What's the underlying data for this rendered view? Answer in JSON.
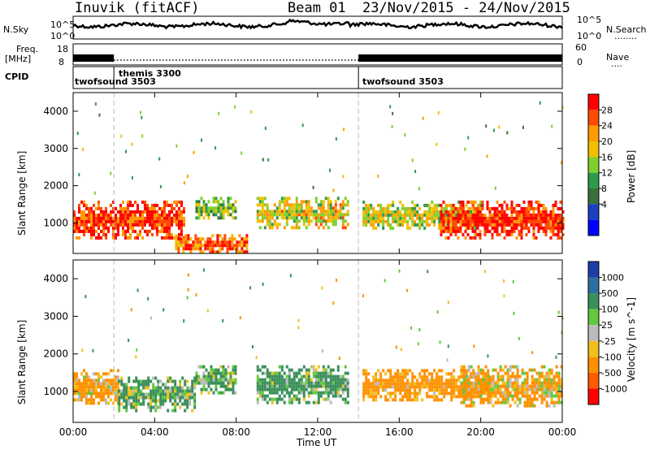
{
  "header": {
    "station": "Inuvik (fitACF)",
    "beam": "Beam 01",
    "date_range": "23/Nov/2015 - 24/Nov/2015"
  },
  "noise_panel": {
    "left_label": "N.Sky",
    "left_ticks": [
      "10^5",
      "10^0"
    ],
    "right_ticks": [
      "10^5",
      "10^0"
    ],
    "right_label": "N.Search",
    "right_label_dots": "........"
  },
  "freq_panel": {
    "left_label_top": "Freq.",
    "left_label_unit": "[MHz]",
    "left_ticks": [
      "18",
      "8"
    ],
    "right_ticks": [
      "60",
      "0"
    ],
    "right_label": "Nave",
    "right_label_dots": "...."
  },
  "cpid_panel": {
    "label": "CPID",
    "segments": [
      {
        "name": "twofsound 3503",
        "start_hour": 0
      },
      {
        "name": "themis 3300",
        "start_hour": 2
      },
      {
        "name": "twofsound 3503",
        "start_hour": 14
      }
    ]
  },
  "power_panel": {
    "ylabel": "Slant Range [km]",
    "yticks": [
      "4000",
      "3000",
      "2000",
      "1000"
    ],
    "colorbar_label": "Power [dB]",
    "colorbar_ticks": [
      "28",
      "24",
      "20",
      "16",
      "12",
      "8",
      "4"
    ],
    "colors": [
      "#ff0000",
      "#ff4a00",
      "#ff9a00",
      "#f0c000",
      "#7fd02a",
      "#2e9a4a",
      "#3a6f3a",
      "#1a3fbf",
      "#0000ff"
    ]
  },
  "velocity_panel": {
    "ylabel": "Slant Range [km]",
    "yticks": [
      "4000",
      "3000",
      "2000",
      "1000"
    ],
    "colorbar_label": "Velocity [m s^-1]",
    "colorbar_ticks": [
      "1000",
      "500",
      "100",
      "25",
      "-25",
      "-100",
      "-500",
      "-1000"
    ],
    "colors": [
      "#1f3fa8",
      "#2f6f9f",
      "#3a8f5a",
      "#64c840",
      "#bbbbbb",
      "#f0c020",
      "#ff9000",
      "#ff5a00",
      "#ff0000"
    ]
  },
  "x_axis": {
    "ticks": [
      "00:00",
      "04:00",
      "08:00",
      "12:00",
      "16:00",
      "20:00",
      "00:00"
    ],
    "label": "Time UT"
  },
  "chart_data": {
    "type": "heatmap",
    "title": "Inuvik (fitACF)",
    "x_range_hours": [
      0,
      24
    ],
    "y_range_km": [
      180,
      4500
    ],
    "xlabel": "Time UT",
    "ylabel": "Slant Range [km]",
    "power_scale_db": [
      0,
      30
    ],
    "velocity_scale": [
      -1000,
      1000
    ],
    "power_regions": [
      {
        "t0": 0,
        "t1": 5.5,
        "r0": 600,
        "r1": 1600,
        "db": 26
      },
      {
        "t0": 5.0,
        "t1": 8.5,
        "r0": 180,
        "r1": 700,
        "db": 24
      },
      {
        "t0": 6.0,
        "t1": 8.0,
        "r0": 1100,
        "r1": 1700,
        "db": 14
      },
      {
        "t0": 9.0,
        "t1": 13.5,
        "r0": 900,
        "r1": 1700,
        "db": 18
      },
      {
        "t0": 14.2,
        "t1": 20.0,
        "r0": 900,
        "r1": 1600,
        "db": 16
      },
      {
        "t0": 18.0,
        "t1": 24.0,
        "r0": 600,
        "r1": 1600,
        "db": 27
      }
    ],
    "velocity_regions": [
      {
        "t0": 0,
        "t1": 2.2,
        "r0": 700,
        "r1": 1600,
        "v": -200
      },
      {
        "t0": 2.2,
        "t1": 6.0,
        "r0": 500,
        "r1": 1400,
        "v": 150
      },
      {
        "t0": 6.0,
        "t1": 8.0,
        "r0": 1000,
        "r1": 1700,
        "v": 150
      },
      {
        "t0": 9.0,
        "t1": 13.5,
        "r0": 700,
        "r1": 1700,
        "v": 200
      },
      {
        "t0": 14.2,
        "t1": 20.5,
        "r0": 800,
        "r1": 1600,
        "v": -250
      },
      {
        "t0": 19.0,
        "t1": 24.0,
        "r0": 600,
        "r1": 1700,
        "v": -150
      }
    ]
  }
}
